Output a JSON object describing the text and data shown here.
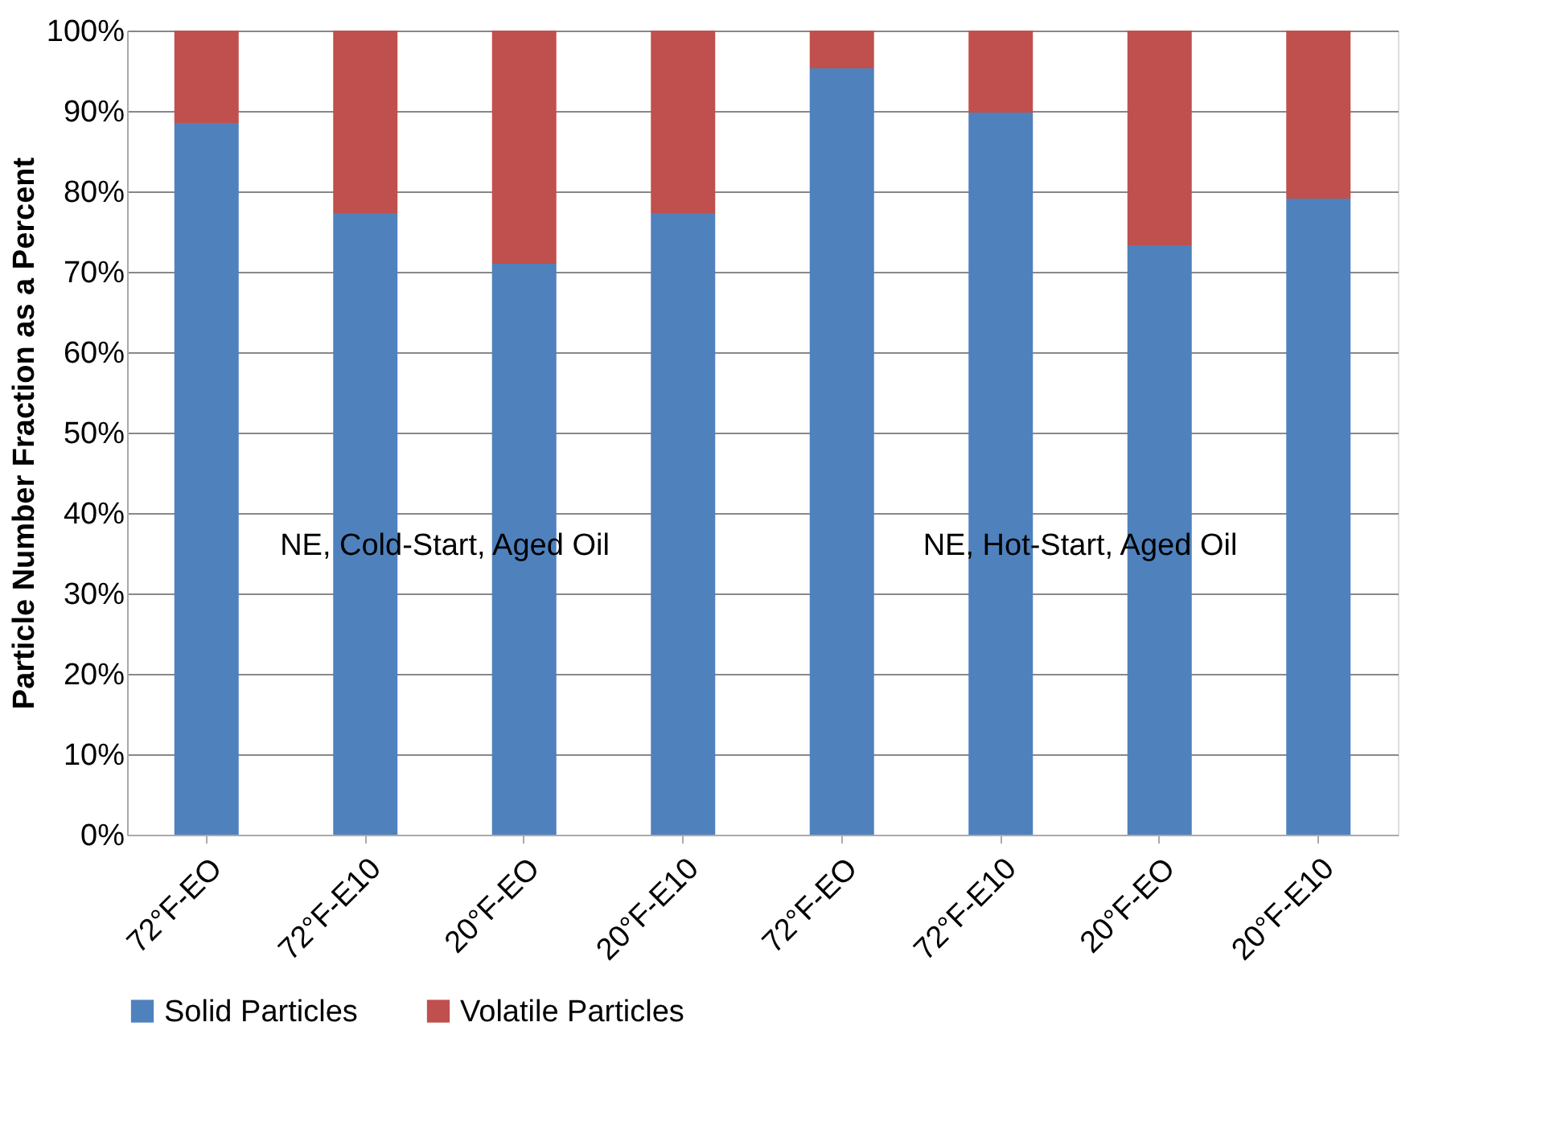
{
  "chart_data": {
    "type": "bar",
    "stacked": true,
    "ylabel": "Particle Number Fraction as a Percent",
    "categories": [
      "72°F-EO",
      "72°F-E10",
      "20°F-EO",
      "20°F-E10",
      "72°F-EO",
      "72°F-E10",
      "20°F-EO",
      "20°F-E10"
    ],
    "series": [
      {
        "name": "Solid Particles",
        "color": "#4f81bd",
        "values": [
          88.5,
          77.3,
          71.0,
          77.3,
          95.3,
          89.8,
          73.3,
          79.1
        ]
      },
      {
        "name": "Volatile Particles",
        "color": "#c0504d",
        "values": [
          11.5,
          22.7,
          29.0,
          22.7,
          4.7,
          10.2,
          26.7,
          20.9
        ]
      }
    ],
    "ylim": [
      0,
      100
    ],
    "yticks": [
      {
        "value": 0,
        "label": "0%"
      },
      {
        "value": 10,
        "label": "10%"
      },
      {
        "value": 20,
        "label": "20%"
      },
      {
        "value": 30,
        "label": "30%"
      },
      {
        "value": 40,
        "label": "40%"
      },
      {
        "value": 50,
        "label": "50%"
      },
      {
        "value": 60,
        "label": "60%"
      },
      {
        "value": 70,
        "label": "70%"
      },
      {
        "value": 80,
        "label": "80%"
      },
      {
        "value": 90,
        "label": "90%"
      },
      {
        "value": 100,
        "label": "100%"
      }
    ],
    "grid": "y",
    "legend": "bottom",
    "annotations": [
      "NE, Cold-Start, Aged Oil",
      "NE, Hot-Start, Aged Oil"
    ]
  }
}
